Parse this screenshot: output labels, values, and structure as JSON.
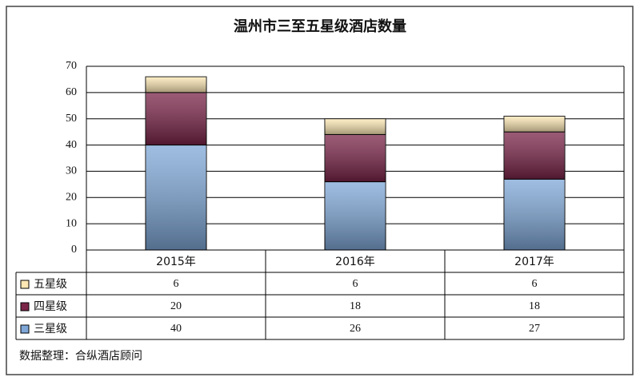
{
  "chart_data": {
    "type": "stacked_bar",
    "title": "温州市三至五星级酒店数量",
    "categories": [
      "2015年",
      "2016年",
      "2017年"
    ],
    "series": [
      {
        "name": "三星级",
        "color": "#7fa8d8",
        "values": [
          40,
          26,
          27
        ]
      },
      {
        "name": "四星级",
        "color": "#7a2448",
        "values": [
          20,
          18,
          18
        ]
      },
      {
        "name": "五星级",
        "color": "#fde8b4",
        "values": [
          6,
          6,
          6
        ]
      }
    ],
    "ylim": [
      0,
      70
    ],
    "yticks": [
      0,
      10,
      20,
      30,
      40,
      50,
      60,
      70
    ],
    "grid": true,
    "source": "数据整理：合纵酒店顾问"
  }
}
